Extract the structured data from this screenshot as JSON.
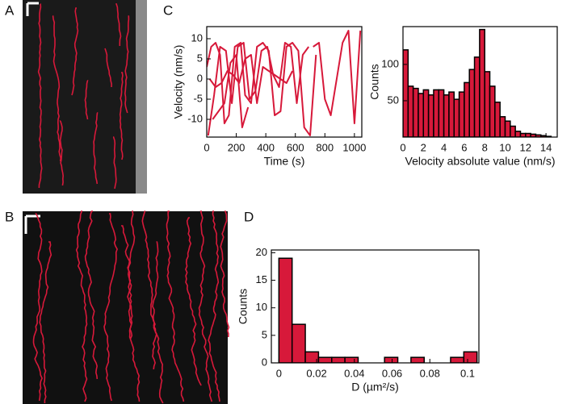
{
  "panel_labels": [
    "A",
    "B",
    "C",
    "D"
  ],
  "chart_data": [
    {
      "type": "line",
      "color": "#d7193a",
      "xlabel": "Time (s)",
      "ylabel": "Velocity (nm/s)",
      "xlim": [
        0,
        1050
      ],
      "ylim": [
        -14.4,
        13
      ],
      "xticks": [
        0,
        200,
        400,
        600,
        800,
        1000
      ],
      "yticks": [
        -10,
        -5,
        0,
        5,
        10
      ],
      "series": [
        {
          "x": [
            0,
            30,
            60,
            90,
            120,
            150,
            190,
            230,
            260,
            300,
            340,
            380,
            420,
            460,
            500,
            540,
            580,
            620,
            660,
            700,
            740
          ],
          "values": [
            3,
            8,
            9,
            6,
            -11,
            -9,
            8,
            9,
            -4,
            -6,
            8,
            9,
            7,
            -9,
            -8,
            8,
            9,
            7,
            -12,
            -14,
            6
          ]
        },
        {
          "x": [
            10,
            50,
            90,
            130,
            170,
            210,
            250,
            290,
            330,
            370,
            410,
            450,
            490,
            530,
            570,
            610,
            650,
            690
          ],
          "values": [
            -14,
            -4,
            8,
            7,
            -6,
            8,
            9,
            -5,
            -3,
            7,
            8,
            1,
            -2,
            9,
            8,
            -6,
            6,
            8
          ]
        },
        {
          "x": [
            20,
            60,
            100,
            140,
            180,
            220,
            260,
            300,
            340,
            380,
            420,
            460,
            500,
            540,
            580
          ],
          "values": [
            0,
            -2,
            -1,
            2,
            1,
            -1,
            5,
            6,
            -6,
            3,
            2,
            1,
            0,
            -1,
            2
          ]
        },
        {
          "x": [
            720,
            760,
            800,
            840,
            880,
            920,
            960,
            1000,
            1040
          ],
          "values": [
            8,
            9,
            -5,
            -9,
            0,
            9,
            12,
            -11,
            12
          ]
        },
        {
          "x": [
            40,
            80,
            120,
            160,
            200,
            240,
            280
          ],
          "values": [
            -10,
            -8,
            -6,
            4,
            6,
            -12,
            -7
          ]
        }
      ]
    },
    {
      "type": "histogram",
      "color": "#d7193a",
      "xlabel": "Velocity absolute value (nm/s)",
      "ylabel": "Counts",
      "xlim": [
        0,
        15.1
      ],
      "ylim": [
        0,
        152
      ],
      "xticks": [
        0,
        2,
        4,
        6,
        8,
        10,
        12,
        14
      ],
      "yticks": [
        50,
        100
      ],
      "bins": [
        0,
        0.5,
        1,
        1.5,
        2,
        2.5,
        3,
        3.5,
        4,
        4.5,
        5,
        5.5,
        6,
        6.5,
        7,
        7.5,
        8,
        8.5,
        9,
        9.5,
        10,
        10.5,
        11,
        11.5,
        12,
        12.5,
        13,
        13.5,
        14,
        14.5
      ],
      "counts": [
        120,
        70,
        67,
        60,
        65,
        58,
        65,
        65,
        58,
        62,
        52,
        62,
        75,
        93,
        110,
        148,
        90,
        70,
        48,
        28,
        22,
        15,
        8,
        5,
        5,
        4,
        3,
        2,
        1
      ]
    },
    {
      "type": "histogram",
      "color": "#d7193a",
      "xlabel": "D (µm²/s)",
      "ylabel": "Counts",
      "xlim": [
        -0.004,
        0.106
      ],
      "ylim": [
        0,
        20.5
      ],
      "xticks": [
        0,
        0.02,
        0.04,
        0.06,
        0.08,
        0.1
      ],
      "yticks": [
        0,
        5,
        10,
        15,
        20
      ],
      "bins": [
        0,
        0.007,
        0.014,
        0.021,
        0.028,
        0.035,
        0.042,
        0.049,
        0.056,
        0.063,
        0.07,
        0.077,
        0.084,
        0.091,
        0.098,
        0.105
      ],
      "counts": [
        19,
        7,
        2,
        1,
        1,
        1,
        0,
        0,
        1,
        0,
        1,
        0,
        0,
        1,
        2
      ]
    }
  ]
}
